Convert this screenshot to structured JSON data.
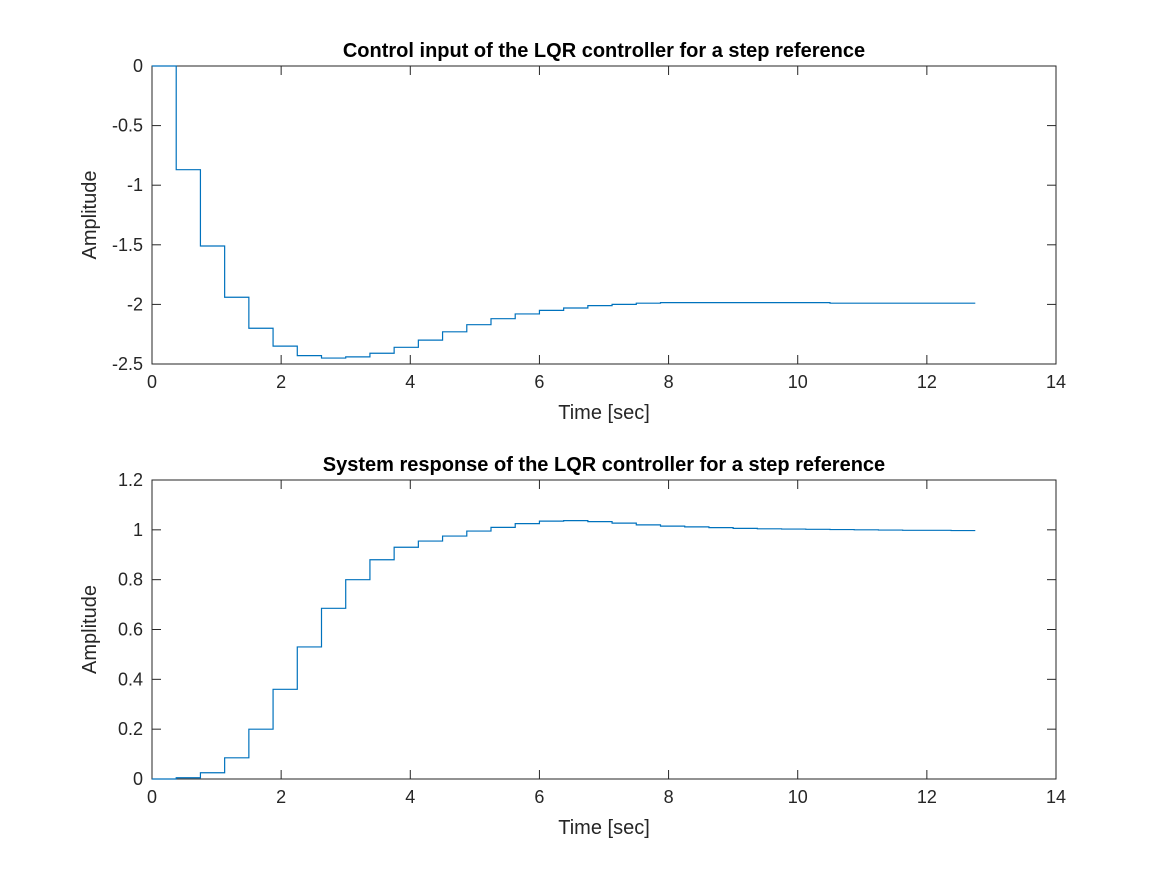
{
  "chart_data": [
    {
      "type": "line",
      "style": "stairs",
      "title": "Control input of the LQR controller for a step reference",
      "xlabel": "Time [sec]",
      "ylabel": "Amplitude",
      "xlim": [
        0,
        14
      ],
      "ylim": [
        -2.5,
        0
      ],
      "xticks": [
        0,
        2,
        4,
        6,
        8,
        10,
        12,
        14
      ],
      "yticks": [
        0,
        -0.5,
        -1,
        -1.5,
        -2,
        -2.5
      ],
      "grid": false,
      "series": [
        {
          "color": "#0072bd",
          "x": [
            0,
            0.375,
            0.75,
            1.125,
            1.5,
            1.875,
            2.25,
            2.625,
            3.0,
            3.375,
            3.75,
            4.125,
            4.5,
            4.875,
            5.25,
            5.625,
            6.0,
            6.375,
            6.75,
            7.125,
            7.5,
            7.875,
            8.25,
            8.625,
            9.0,
            9.375,
            9.75,
            10.125,
            10.5,
            10.875,
            11.25,
            11.625,
            12.0,
            12.375,
            12.75
          ],
          "y": [
            0,
            -0.87,
            -1.51,
            -1.94,
            -2.2,
            -2.35,
            -2.43,
            -2.45,
            -2.44,
            -2.41,
            -2.36,
            -2.3,
            -2.23,
            -2.17,
            -2.12,
            -2.08,
            -2.05,
            -2.03,
            -2.01,
            -2.0,
            -1.99,
            -1.985,
            -1.985,
            -1.985,
            -1.985,
            -1.985,
            -1.985,
            -1.985,
            -1.99,
            -1.99,
            -1.99,
            -1.99,
            -1.99,
            -1.99,
            -1.99
          ]
        }
      ]
    },
    {
      "type": "line",
      "style": "stairs",
      "title": "System response of the LQR controller for a step reference",
      "xlabel": "Time [sec]",
      "ylabel": "Amplitude",
      "xlim": [
        0,
        14
      ],
      "ylim": [
        0,
        1.2
      ],
      "xticks": [
        0,
        2,
        4,
        6,
        8,
        10,
        12,
        14
      ],
      "yticks": [
        0,
        0.2,
        0.4,
        0.6,
        0.8,
        1,
        1.2
      ],
      "grid": false,
      "series": [
        {
          "color": "#0072bd",
          "x": [
            0,
            0.375,
            0.75,
            1.125,
            1.5,
            1.875,
            2.25,
            2.625,
            3.0,
            3.375,
            3.75,
            4.125,
            4.5,
            4.875,
            5.25,
            5.625,
            6.0,
            6.375,
            6.75,
            7.125,
            7.5,
            7.875,
            8.25,
            8.625,
            9.0,
            9.375,
            9.75,
            10.125,
            10.5,
            10.875,
            11.25,
            11.625,
            12.0,
            12.375,
            12.75
          ],
          "y": [
            0,
            0.005,
            0.025,
            0.085,
            0.2,
            0.36,
            0.53,
            0.685,
            0.8,
            0.88,
            0.93,
            0.955,
            0.975,
            0.995,
            1.01,
            1.025,
            1.035,
            1.037,
            1.033,
            1.027,
            1.02,
            1.015,
            1.012,
            1.009,
            1.006,
            1.004,
            1.003,
            1.002,
            1.001,
            1.0,
            0.999,
            0.998,
            0.998,
            0.997,
            0.997
          ]
        }
      ]
    }
  ]
}
